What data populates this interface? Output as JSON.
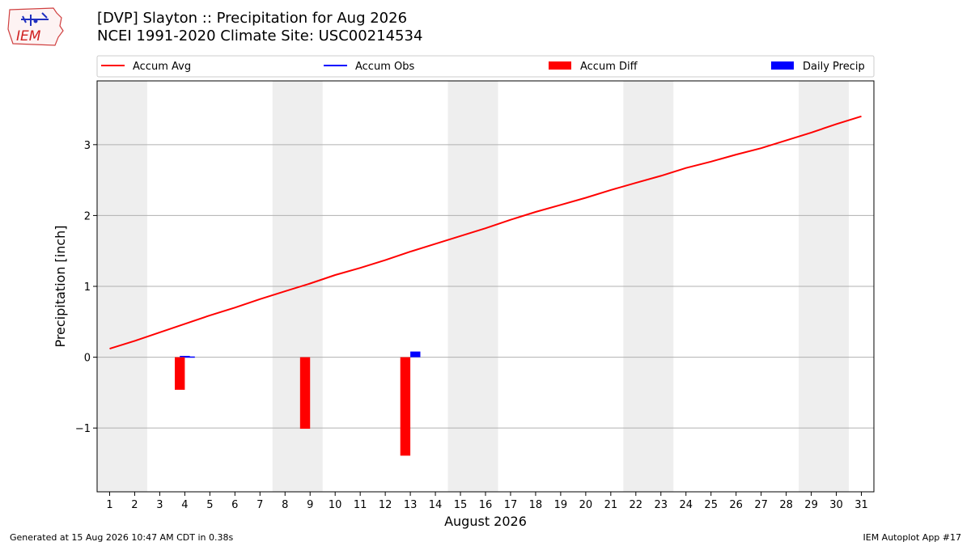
{
  "header": {
    "title_line1": "[DVP] Slayton :: Precipitation for Aug 2026",
    "title_line2": "NCEI 1991-2020 Climate Site: USC00214534"
  },
  "logo": {
    "text": "IEM"
  },
  "footer": {
    "left": "Generated at 15 Aug 2026 10:47 AM CDT in 0.38s",
    "right": "IEM Autoplot App #17"
  },
  "colors": {
    "avg": "#ff0000",
    "obs": "#0000ff",
    "diff": "#ff0000",
    "daily": "#0000ff",
    "weekend_band": "#eeeeee"
  },
  "chart_data": {
    "type": "line",
    "xlabel": "August 2026",
    "ylabel": "Precipitation [inch]",
    "ylim": [
      -1.9,
      3.9
    ],
    "xlim": [
      0.5,
      31.5
    ],
    "yticks": [
      -1,
      0,
      1,
      2,
      3
    ],
    "ytick_labels": [
      "−1",
      "0",
      "1",
      "2",
      "3"
    ],
    "xticks": [
      1,
      2,
      3,
      4,
      5,
      6,
      7,
      8,
      9,
      10,
      11,
      12,
      13,
      14,
      15,
      16,
      17,
      18,
      19,
      20,
      21,
      22,
      23,
      24,
      25,
      26,
      27,
      28,
      29,
      30,
      31
    ],
    "grid": "y",
    "legend": {
      "placement": "top",
      "entries": [
        "Accum Avg",
        "Accum Obs",
        "Accum Diff",
        "Daily Precip"
      ]
    },
    "weekend_bands": [
      [
        1,
        2
      ],
      [
        8,
        9
      ],
      [
        15,
        16
      ],
      [
        22,
        23
      ],
      [
        29,
        30
      ]
    ],
    "series": [
      {
        "name": "Accum Avg",
        "kind": "line",
        "x": [
          1,
          2,
          3,
          4,
          5,
          6,
          7,
          8,
          9,
          10,
          11,
          12,
          13,
          14,
          15,
          16,
          17,
          18,
          19,
          20,
          21,
          22,
          23,
          24,
          25,
          26,
          27,
          28,
          29,
          30,
          31
        ],
        "values": [
          0.12,
          0.23,
          0.35,
          0.47,
          0.59,
          0.7,
          0.82,
          0.93,
          1.04,
          1.16,
          1.26,
          1.37,
          1.49,
          1.6,
          1.71,
          1.82,
          1.94,
          2.05,
          2.15,
          2.25,
          2.36,
          2.46,
          2.56,
          2.67,
          2.76,
          2.86,
          2.95,
          3.06,
          3.17,
          3.29,
          3.4
        ]
      },
      {
        "name": "Accum Obs",
        "kind": "line",
        "x": [
          4
        ],
        "values": [
          0.01
        ]
      },
      {
        "name": "Accum Diff",
        "kind": "bar",
        "x": [
          4,
          9,
          13
        ],
        "values": [
          -0.46,
          -1.01,
          -1.39
        ]
      },
      {
        "name": "Daily Precip",
        "kind": "bar",
        "x": [
          4,
          13
        ],
        "values": [
          0.01,
          0.08
        ]
      }
    ]
  }
}
